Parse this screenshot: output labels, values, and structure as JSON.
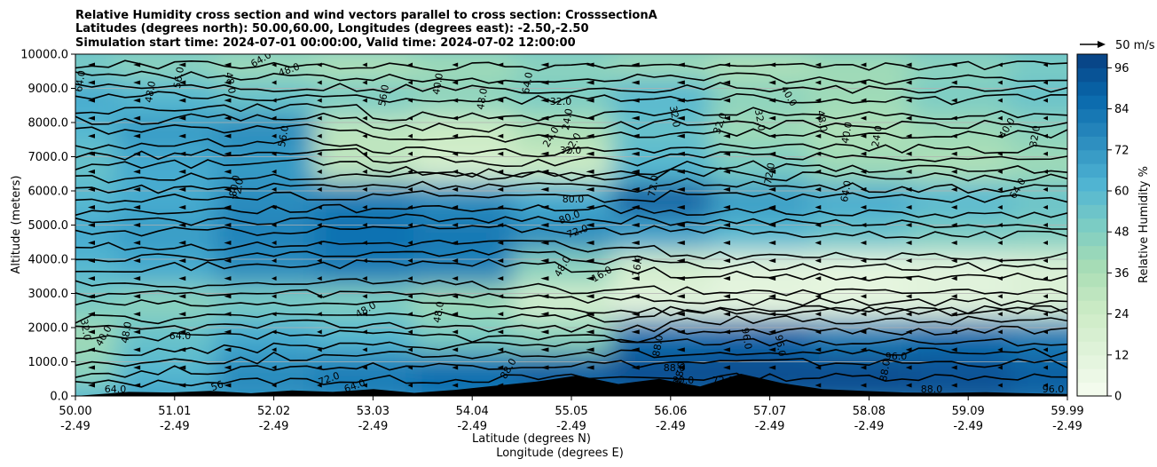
{
  "chart_data": {
    "type": "heatmap",
    "title_lines": [
      "Relative Humidity cross section and wind vectors parallel to cross section: CrosssectionA",
      "Latitudes (degrees north): 50.00,60.00, Longitudes (degrees east): -2.50,-2.50",
      "Simulation start time: 2024-07-01 00:00:00, Valid time: 2024-07-02 12:00:00"
    ],
    "ylabel": "Altitude (meters)",
    "xlabel": "Latitude (degrees N)",
    "xlabel2": "Longitude (degrees E)",
    "y_ticks": [
      "0.0",
      "1000.0",
      "2000.0",
      "3000.0",
      "4000.0",
      "5000.0",
      "6000.0",
      "7000.0",
      "8000.0",
      "9000.0",
      "10000.0"
    ],
    "ylim": [
      0,
      10000
    ],
    "x_ticks_lat": [
      "50.00",
      "51.01",
      "52.02",
      "53.03",
      "54.04",
      "55.05",
      "56.06",
      "57.07",
      "58.08",
      "59.09",
      "59.99"
    ],
    "x_ticks_lon": [
      "-2.49",
      "-2.49",
      "-2.49",
      "-2.49",
      "-2.49",
      "-2.49",
      "-2.49",
      "-2.49",
      "-2.49",
      "-2.49",
      "-2.49"
    ],
    "colorbar": {
      "label": "Relative Humidity %",
      "ticks": [
        "0",
        "12",
        "24",
        "36",
        "48",
        "60",
        "72",
        "84",
        "96"
      ],
      "range": [
        0,
        100
      ],
      "colors": [
        "#f7fcf0",
        "#e0f3db",
        "#ccebc5",
        "#a8ddb5",
        "#7bccc4",
        "#4eb3d3",
        "#2b8cbe",
        "#0868ac",
        "#084081"
      ]
    },
    "quiver_key": "50 m/s",
    "contour_levels": [
      "8.0",
      "16.0",
      "24.0",
      "32.0",
      "40.0",
      "48.0",
      "56.0",
      "64.0",
      "72.0",
      "80.0",
      "88.0",
      "96.0"
    ],
    "rh_profiles": [
      {
        "alt": 0,
        "values": [
          60,
          70,
          75,
          80,
          85,
          88,
          90,
          92,
          94,
          95,
          90
        ]
      },
      {
        "alt": 1000,
        "values": [
          45,
          60,
          75,
          80,
          85,
          90,
          96,
          96,
          96,
          94,
          90
        ]
      },
      {
        "alt": 2000,
        "values": [
          40,
          55,
          65,
          60,
          50,
          45,
          85,
          88,
          80,
          85,
          80
        ]
      },
      {
        "alt": 3000,
        "values": [
          50,
          45,
          50,
          48,
          40,
          20,
          12,
          10,
          10,
          12,
          15
        ]
      },
      {
        "alt": 4000,
        "values": [
          60,
          65,
          75,
          80,
          78,
          45,
          20,
          12,
          10,
          12,
          15
        ]
      },
      {
        "alt": 5000,
        "values": [
          65,
          70,
          78,
          85,
          82,
          75,
          68,
          60,
          55,
          50,
          48
        ]
      },
      {
        "alt": 6000,
        "values": [
          60,
          65,
          75,
          80,
          75,
          65,
          90,
          70,
          65,
          60,
          55
        ]
      },
      {
        "alt": 7000,
        "values": [
          55,
          65,
          70,
          30,
          20,
          25,
          60,
          50,
          40,
          35,
          40
        ]
      },
      {
        "alt": 8000,
        "values": [
          60,
          70,
          75,
          30,
          25,
          35,
          55,
          40,
          35,
          40,
          45
        ]
      },
      {
        "alt": 9000,
        "values": [
          65,
          60,
          55,
          50,
          45,
          50,
          60,
          45,
          40,
          50,
          55
        ]
      },
      {
        "alt": 10000,
        "values": [
          50,
          45,
          40,
          35,
          40,
          45,
          40,
          35,
          40,
          45,
          50
        ]
      }
    ],
    "terrain_m": [
      120,
      100,
      150,
      80,
      160,
      120,
      200,
      90,
      180,
      300,
      420,
      600,
      350,
      500,
      280,
      650,
      380,
      200,
      150,
      100,
      90,
      110,
      80,
      60
    ],
    "wind_u": [
      -5,
      -5,
      -3,
      -3,
      -4,
      -6,
      -6,
      -5,
      -4,
      -4,
      -3
    ]
  },
  "contour_labels": [
    {
      "text": "64.0",
      "x": 94,
      "y": 92,
      "rot": -80
    },
    {
      "text": "48.0",
      "x": 173,
      "y": 104,
      "rot": -80
    },
    {
      "text": "56.0",
      "x": 205,
      "y": 88,
      "rot": -80
    },
    {
      "text": "48.0",
      "x": 256,
      "y": 94,
      "rot": 80
    },
    {
      "text": "64.0",
      "x": 296,
      "y": 70,
      "rot": -30
    },
    {
      "text": "48.0",
      "x": 327,
      "y": 82,
      "rot": -20
    },
    {
      "text": "56.0",
      "x": 436,
      "y": 108,
      "rot": -80
    },
    {
      "text": "40.0",
      "x": 497,
      "y": 95,
      "rot": -80
    },
    {
      "text": "48.0",
      "x": 547,
      "y": 112,
      "rot": -80
    },
    {
      "text": "64.0",
      "x": 598,
      "y": 94,
      "rot": -80
    },
    {
      "text": "32.0",
      "x": 632,
      "y": 118,
      "rot": 0
    },
    {
      "text": "24.0",
      "x": 643,
      "y": 135,
      "rot": -80
    },
    {
      "text": "24.0",
      "x": 624,
      "y": 156,
      "rot": -60
    },
    {
      "text": "32.0",
      "x": 649,
      "y": 163,
      "rot": -60
    },
    {
      "text": "32.0",
      "x": 643,
      "y": 173,
      "rot": 0
    },
    {
      "text": "56.0",
      "x": 323,
      "y": 154,
      "rot": -80
    },
    {
      "text": "32.0",
      "x": 757,
      "y": 132,
      "rot": 80
    },
    {
      "text": "32.0",
      "x": 815,
      "y": 140,
      "rot": -70
    },
    {
      "text": "32.0",
      "x": 853,
      "y": 136,
      "rot": 80
    },
    {
      "text": "40.0",
      "x": 886,
      "y": 110,
      "rot": 60
    },
    {
      "text": "48.0",
      "x": 923,
      "y": 137,
      "rot": 80
    },
    {
      "text": "40.0",
      "x": 958,
      "y": 150,
      "rot": -80
    },
    {
      "text": "24.0",
      "x": 992,
      "y": 154,
      "rot": -80
    },
    {
      "text": "40.0",
      "x": 1138,
      "y": 146,
      "rot": -60
    },
    {
      "text": "32.0",
      "x": 1170,
      "y": 154,
      "rot": -80
    },
    {
      "text": "72.0",
      "x": 272,
      "y": 214,
      "rot": -80
    },
    {
      "text": "80.0",
      "x": 268,
      "y": 210,
      "rot": -80
    },
    {
      "text": "80.0",
      "x": 646,
      "y": 228,
      "rot": 0
    },
    {
      "text": "80.0",
      "x": 643,
      "y": 248,
      "rot": -20
    },
    {
      "text": "72.0",
      "x": 652,
      "y": 264,
      "rot": -20
    },
    {
      "text": "72.0",
      "x": 740,
      "y": 210,
      "rot": -80
    },
    {
      "text": "72.0",
      "x": 871,
      "y": 196,
      "rot": -80
    },
    {
      "text": "64.0",
      "x": 957,
      "y": 216,
      "rot": -80
    },
    {
      "text": "64.0",
      "x": 1150,
      "y": 214,
      "rot": -60
    },
    {
      "text": "48.0",
      "x": 637,
      "y": 302,
      "rot": -60
    },
    {
      "text": "16.0",
      "x": 680,
      "y": 312,
      "rot": -30
    },
    {
      "text": "16.0",
      "x": 722,
      "y": 300,
      "rot": -80
    },
    {
      "text": "48.0",
      "x": 414,
      "y": 352,
      "rot": -30
    },
    {
      "text": "48.0",
      "x": 498,
      "y": 352,
      "rot": -80
    },
    {
      "text": "40.0",
      "x": 120,
      "y": 380,
      "rot": -60
    },
    {
      "text": "48.0",
      "x": 146,
      "y": 375,
      "rot": -80
    },
    {
      "text": "64.0",
      "x": 203,
      "y": 382,
      "rot": 0
    },
    {
      "text": "88.0",
      "x": 745,
      "y": 390,
      "rot": -80
    },
    {
      "text": "88.0",
      "x": 770,
      "y": 420,
      "rot": -80
    },
    {
      "text": "88.0",
      "x": 760,
      "y": 418,
      "rot": 0
    },
    {
      "text": "96.0",
      "x": 838,
      "y": 382,
      "rot": 80
    },
    {
      "text": "96.0",
      "x": 876,
      "y": 390,
      "rot": 80
    },
    {
      "text": "96.0",
      "x": 1010,
      "y": 405,
      "rot": 0
    },
    {
      "text": "88.0",
      "x": 1001,
      "y": 418,
      "rot": -80
    },
    {
      "text": "88.0",
      "x": 576,
      "y": 417,
      "rot": -60
    },
    {
      "text": "72.0",
      "x": 372,
      "y": 430,
      "rot": -20
    },
    {
      "text": "64.0",
      "x": 401,
      "y": 438,
      "rot": -20
    },
    {
      "text": "72.0",
      "x": 815,
      "y": 432,
      "rot": 0
    },
    {
      "text": "80.0",
      "x": 770,
      "y": 432,
      "rot": 0
    },
    {
      "text": "88.0",
      "x": 1050,
      "y": 442,
      "rot": 0
    },
    {
      "text": "96.0",
      "x": 1187,
      "y": 442,
      "rot": 0
    },
    {
      "text": "32.0",
      "x": 93,
      "y": 372,
      "rot": 80
    },
    {
      "text": "64.0",
      "x": 130,
      "y": 442,
      "rot": 0
    },
    {
      "text": "56",
      "x": 246,
      "y": 438,
      "rot": -20
    }
  ]
}
